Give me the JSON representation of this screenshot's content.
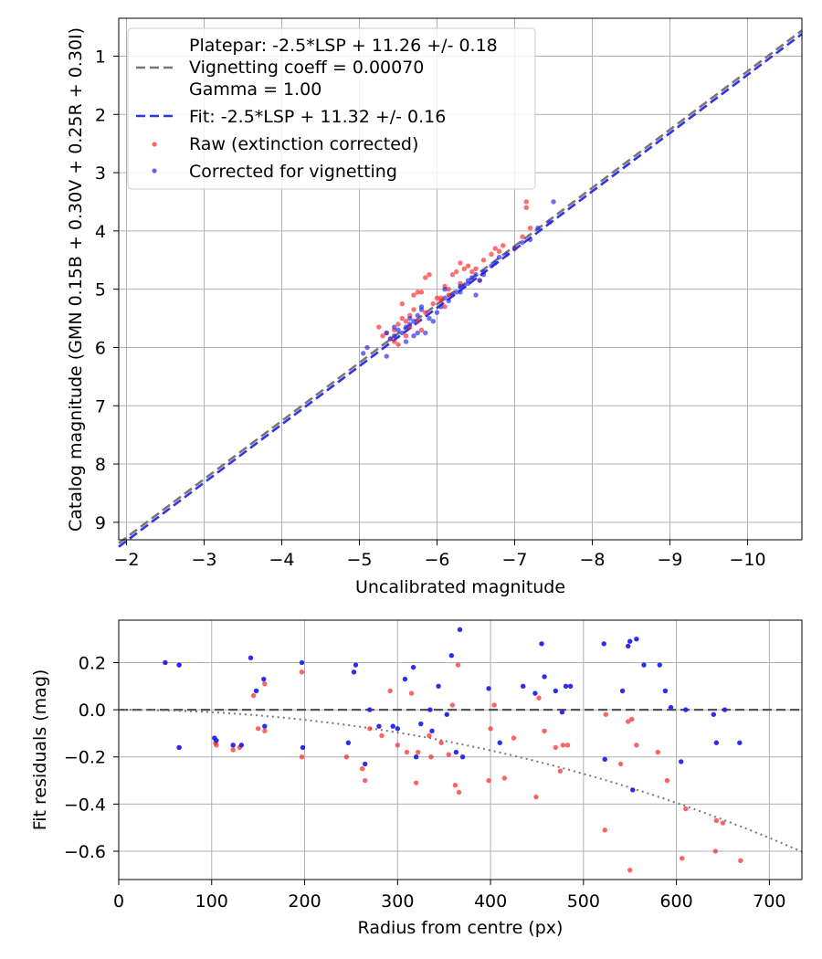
{
  "chart_data": [
    {
      "type": "scatter",
      "xlabel": "Uncalibrated magnitude",
      "ylabel": "Catalog magnitude (GMN 0.15B + 0.30V + 0.25R + 0.30I)",
      "xlim": [
        -1.9,
        -10.7
      ],
      "ylim": [
        9.3,
        0.35
      ],
      "xticks": [
        -2,
        -3,
        -4,
        -5,
        -6,
        -7,
        -8,
        -9,
        -10
      ],
      "xtick_labels": [
        "−2",
        "−3",
        "−4",
        "−5",
        "−6",
        "−7",
        "−8",
        "−9",
        "−10"
      ],
      "yticks": [
        1,
        2,
        3,
        4,
        5,
        6,
        7,
        8,
        9
      ],
      "ytick_labels": [
        "1",
        "2",
        "3",
        "4",
        "5",
        "6",
        "7",
        "8",
        "9"
      ],
      "grid": true,
      "legend_location": "upper-left",
      "legend": [
        {
          "label": "Platepar: -2.5*LSP + 11.26 +/- 0.18",
          "style": "none"
        },
        {
          "label": "Vignetting coeff = 0.00070",
          "style": "grey-dashed"
        },
        {
          "label": "Gamma = 1.00",
          "style": "none"
        },
        {
          "label": "Fit: -2.5*LSP + 11.32 +/- 0.16",
          "style": "blue-dashed"
        },
        {
          "label": "Raw (extinction corrected)",
          "style": "red-dot"
        },
        {
          "label": "Corrected for vignetting",
          "style": "blue-dot"
        }
      ],
      "lines": [
        {
          "name": "Platepar",
          "slope": 1.0,
          "intercept": 11.26,
          "color": "#777777"
        },
        {
          "name": "Fit",
          "slope": 1.0,
          "intercept": 11.32,
          "color": "#3333ee"
        }
      ],
      "series": [
        {
          "name": "Raw (extinction corrected)",
          "color": "#ff2222",
          "x": [
            -5.35,
            -5.4,
            -5.45,
            -5.5,
            -5.5,
            -5.55,
            -5.6,
            -5.6,
            -5.65,
            -5.7,
            -5.7,
            -5.75,
            -5.75,
            -5.8,
            -5.85,
            -5.85,
            -5.9,
            -5.95,
            -6.0,
            -6.05,
            -6.1,
            -6.1,
            -6.15,
            -6.2,
            -6.25,
            -6.3,
            -6.35,
            -6.4,
            -6.45,
            -6.5,
            -6.6,
            -6.7,
            -6.75,
            -6.8,
            -6.85,
            -7.0,
            -7.1,
            -7.15,
            -7.15,
            -7.2,
            -5.45,
            -5.65,
            -5.55,
            -5.8,
            -6.05,
            -6.15,
            -6.3,
            -6.55,
            -5.25,
            -5.3
          ],
          "y": [
            5.75,
            5.85,
            5.7,
            5.6,
            5.95,
            5.5,
            5.55,
            5.8,
            5.45,
            5.1,
            5.35,
            5.05,
            5.55,
            5.7,
            4.8,
            5.4,
            4.75,
            5.25,
            5.15,
            5.15,
            4.95,
            5.3,
            5.0,
            4.75,
            4.7,
            4.9,
            4.65,
            4.6,
            4.7,
            4.65,
            4.5,
            4.4,
            4.3,
            4.35,
            4.25,
            4.3,
            4.1,
            3.5,
            3.6,
            3.95,
            5.9,
            5.65,
            5.25,
            5.05,
            5.2,
            5.1,
            4.55,
            4.85,
            5.65,
            5.8
          ]
        },
        {
          "name": "Corrected for vignetting",
          "color": "#2222ee",
          "x": [
            -5.05,
            -5.1,
            -5.35,
            -5.4,
            -5.45,
            -5.5,
            -5.55,
            -5.6,
            -5.6,
            -5.65,
            -5.7,
            -5.7,
            -5.75,
            -5.75,
            -5.8,
            -5.85,
            -5.9,
            -5.95,
            -6.0,
            -6.05,
            -6.1,
            -6.15,
            -6.2,
            -6.25,
            -6.3,
            -6.35,
            -6.4,
            -6.45,
            -6.5,
            -6.55,
            -6.6,
            -6.7,
            -6.75,
            -6.8,
            -6.9,
            -7.0,
            -7.1,
            -7.2,
            -7.3,
            -7.45,
            -7.5,
            -5.45,
            -5.65,
            -5.8,
            -6.1,
            -6.3,
            -6.5,
            -5.35,
            -6.4,
            -6.6
          ],
          "y": [
            6.1,
            6.0,
            6.15,
            5.85,
            5.8,
            5.7,
            5.75,
            5.65,
            5.9,
            5.6,
            5.55,
            5.8,
            5.45,
            5.75,
            5.35,
            5.75,
            5.5,
            5.55,
            5.4,
            5.3,
            5.15,
            5.2,
            5.1,
            5.05,
            4.95,
            4.95,
            4.85,
            4.8,
            4.75,
            4.85,
            4.7,
            4.6,
            4.55,
            4.45,
            4.4,
            4.3,
            4.2,
            4.15,
            3.95,
            3.85,
            3.5,
            5.65,
            5.5,
            5.3,
            5.0,
            5.05,
            5.1,
            5.75,
            4.9,
            4.75
          ]
        }
      ]
    },
    {
      "type": "scatter",
      "xlabel": "Radius from centre (px)",
      "ylabel": "Fit residuals (mag)",
      "xlim": [
        0,
        735
      ],
      "ylim": [
        -0.72,
        0.38
      ],
      "xticks": [
        0,
        100,
        200,
        300,
        400,
        500,
        600,
        700
      ],
      "xtick_labels": [
        "0",
        "100",
        "200",
        "300",
        "400",
        "500",
        "600",
        "700"
      ],
      "yticks": [
        0.2,
        0.0,
        -0.2,
        -0.4,
        -0.6
      ],
      "ytick_labels": [
        "0.2",
        "0.0",
        "−0.2",
        "−0.4",
        "−0.6"
      ],
      "grid": true,
      "lines": [
        {
          "name": "zero",
          "style": "dashed",
          "color": "#555555",
          "value": 0.0
        },
        {
          "name": "vignetting model",
          "style": "dotted",
          "color": "#777777",
          "vignetting_coeff": 0.0007
        }
      ],
      "series": [
        {
          "name": "Raw",
          "color": "#ff2222",
          "x": [
            50,
            65,
            65,
            104,
            105,
            123,
            130,
            145,
            150,
            157,
            157,
            197,
            197,
            245,
            262,
            265,
            270,
            283,
            292,
            300,
            310,
            315,
            320,
            322,
            334,
            336,
            347,
            355,
            359,
            362,
            365,
            366,
            398,
            400,
            404,
            415,
            425,
            449,
            452,
            458,
            470,
            475,
            478,
            483,
            523,
            524,
            540,
            548,
            550,
            552,
            557,
            580,
            590,
            606,
            610,
            642,
            643,
            650,
            669
          ],
          "y": [
            0.2,
            0.19,
            -0.16,
            -0.14,
            -0.15,
            -0.17,
            -0.16,
            0.06,
            -0.08,
            0.11,
            -0.09,
            0.16,
            -0.2,
            -0.2,
            -0.25,
            -0.3,
            -0.08,
            -0.11,
            0.08,
            -0.15,
            -0.18,
            0.07,
            -0.31,
            -0.18,
            -0.11,
            -0.2,
            -0.14,
            -0.19,
            0.02,
            -0.32,
            0.19,
            -0.35,
            -0.3,
            -0.08,
            0.02,
            -0.29,
            -0.12,
            -0.37,
            0.05,
            -0.09,
            -0.16,
            -0.26,
            -0.15,
            -0.15,
            -0.51,
            -0.02,
            -0.23,
            -0.05,
            -0.68,
            -0.04,
            -0.15,
            -0.18,
            -0.3,
            -0.63,
            -0.42,
            -0.6,
            -0.47,
            -0.48,
            -0.64
          ]
        },
        {
          "name": "Corrected",
          "color": "#2222ee",
          "x": [
            50,
            65,
            65,
            103,
            105,
            123,
            132,
            142,
            148,
            156,
            157,
            197,
            198,
            247,
            253,
            255,
            265,
            270,
            280,
            295,
            300,
            308,
            317,
            320,
            325,
            335,
            337,
            344,
            353,
            358,
            363,
            367,
            370,
            398,
            410,
            435,
            448,
            455,
            458,
            470,
            477,
            481,
            486,
            522,
            523,
            542,
            548,
            550,
            553,
            557,
            565,
            582,
            588,
            594,
            605,
            610,
            640,
            643,
            652,
            668
          ],
          "y": [
            0.2,
            0.19,
            -0.16,
            -0.12,
            -0.13,
            -0.15,
            -0.15,
            0.22,
            0.08,
            0.13,
            -0.07,
            0.2,
            -0.16,
            -0.14,
            0.16,
            0.19,
            -0.23,
            0.0,
            -0.07,
            -0.07,
            -0.08,
            0.13,
            0.18,
            -0.2,
            -0.06,
            0.0,
            -0.09,
            0.1,
            -0.02,
            0.23,
            -0.18,
            0.34,
            -0.2,
            0.09,
            -0.14,
            0.1,
            0.07,
            0.28,
            0.14,
            0.08,
            -0.01,
            0.1,
            0.1,
            0.28,
            -0.21,
            0.08,
            0.27,
            0.29,
            -0.34,
            0.3,
            0.19,
            0.19,
            0.08,
            0.01,
            -0.22,
            0.0,
            -0.02,
            -0.14,
            0.0,
            -0.14
          ]
        }
      ]
    }
  ]
}
